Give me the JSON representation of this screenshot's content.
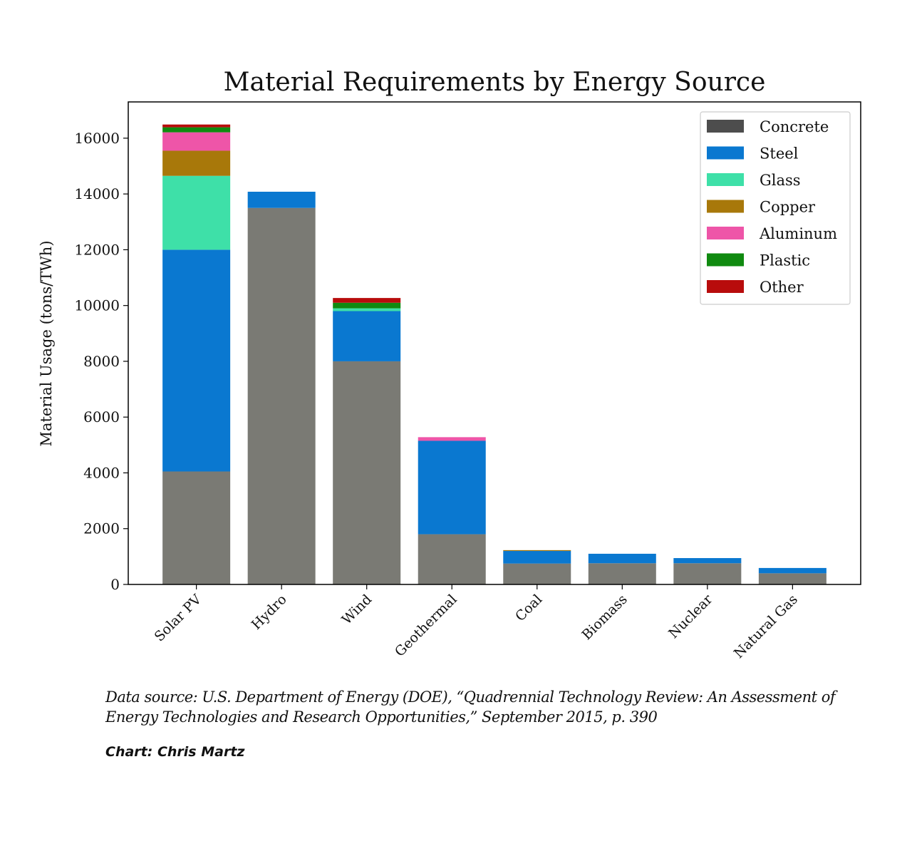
{
  "chart_data": {
    "type": "bar",
    "stacked": true,
    "title": "Material Requirements by Energy Source",
    "xlabel": "",
    "ylabel": "Material Usage (tons/TWh)",
    "ylim": [
      0,
      17300
    ],
    "yticks": [
      0,
      2000,
      4000,
      6000,
      8000,
      10000,
      12000,
      14000,
      16000
    ],
    "grid": false,
    "legend_position": "top-right",
    "categories": [
      "Solar PV",
      "Hydro",
      "Wind",
      "Geothermal",
      "Coal",
      "Biomass",
      "Nuclear",
      "Natural Gas"
    ],
    "series": [
      {
        "name": "Concrete",
        "color": "#4d4d4d",
        "values": [
          4050,
          13500,
          8000,
          1800,
          750,
          760,
          760,
          400
        ]
      },
      {
        "name": "Steel",
        "color": "#0a78d0",
        "values": [
          7950,
          580,
          1800,
          3350,
          450,
          340,
          185,
          190
        ]
      },
      {
        "name": "Glass",
        "color": "#3ee0a8",
        "values": [
          2650,
          0,
          100,
          0,
          0,
          0,
          0,
          0
        ]
      },
      {
        "name": "Copper",
        "color": "#a8780a",
        "values": [
          900,
          0,
          0,
          0,
          30,
          0,
          0,
          0
        ]
      },
      {
        "name": "Aluminum",
        "color": "#ee55a8",
        "values": [
          660,
          0,
          0,
          130,
          0,
          0,
          0,
          0
        ]
      },
      {
        "name": "Plastic",
        "color": "#108a10",
        "values": [
          180,
          0,
          200,
          0,
          0,
          0,
          0,
          0
        ]
      },
      {
        "name": "Other",
        "color": "#b80c0c",
        "values": [
          100,
          0,
          170,
          0,
          0,
          0,
          0,
          0
        ]
      }
    ],
    "bar_concrete_display_color": "#7a7a74"
  },
  "source": {
    "line1": "Data source: U.S. Department of Energy (DOE), “Quadrennial Technology Review: An Assessment of",
    "line2": "Energy Technologies and Research Opportunities,” September 2015, p. 390"
  },
  "credit": "Chart: Chris Martz"
}
